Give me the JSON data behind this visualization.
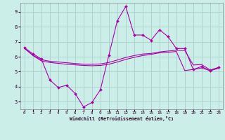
{
  "xlabel": "Windchill (Refroidissement éolien,°C)",
  "bg_color": "#cceee8",
  "grid_color": "#aad4cc",
  "line_color": "#aa00aa",
  "xlim": [
    -0.5,
    23.5
  ],
  "ylim": [
    2.5,
    9.6
  ],
  "xticks": [
    0,
    1,
    2,
    3,
    4,
    5,
    6,
    7,
    8,
    9,
    10,
    11,
    12,
    13,
    14,
    15,
    16,
    17,
    18,
    19,
    20,
    21,
    22,
    23
  ],
  "yticks": [
    3,
    4,
    5,
    6,
    7,
    8,
    9
  ],
  "line1_x": [
    0,
    1,
    2,
    3,
    4,
    5,
    6,
    7,
    8,
    9,
    10,
    11,
    12,
    13,
    14,
    15,
    16,
    17,
    18,
    19,
    20,
    21,
    22,
    23
  ],
  "line1_y": [
    6.6,
    6.2,
    5.85,
    4.45,
    3.95,
    4.1,
    3.55,
    2.65,
    2.95,
    3.8,
    6.1,
    8.4,
    9.35,
    7.45,
    7.45,
    7.1,
    7.8,
    7.35,
    6.55,
    6.55,
    5.15,
    5.35,
    5.05,
    5.3
  ],
  "line2_x": [
    0,
    1,
    2,
    3,
    4,
    5,
    6,
    7,
    8,
    9,
    10,
    11,
    12,
    13,
    14,
    15,
    16,
    17,
    18,
    19,
    20,
    21,
    22,
    23
  ],
  "line2_y": [
    6.55,
    6.1,
    5.8,
    5.7,
    5.65,
    5.6,
    5.55,
    5.5,
    5.5,
    5.52,
    5.62,
    5.78,
    5.95,
    6.08,
    6.18,
    6.22,
    6.32,
    6.38,
    6.43,
    6.42,
    5.45,
    5.48,
    5.12,
    5.28
  ],
  "line3_x": [
    0,
    1,
    2,
    3,
    4,
    5,
    6,
    7,
    8,
    9,
    10,
    11,
    12,
    13,
    14,
    15,
    16,
    17,
    18,
    19,
    20,
    21,
    22,
    23
  ],
  "line3_y": [
    6.58,
    6.08,
    5.72,
    5.62,
    5.56,
    5.5,
    5.46,
    5.42,
    5.4,
    5.42,
    5.5,
    5.65,
    5.82,
    5.96,
    6.08,
    6.16,
    6.26,
    6.3,
    6.35,
    5.08,
    5.15,
    5.25,
    5.08,
    5.22
  ]
}
